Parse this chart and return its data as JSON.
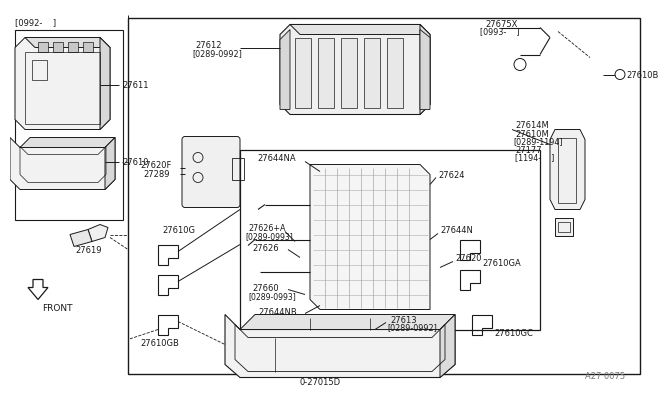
{
  "bg_color": "#ffffff",
  "line_color": "#1a1a1a",
  "text_color": "#1a1a1a",
  "gray_color": "#777777",
  "fig_width": 6.4,
  "fig_height": 3.72,
  "labels": {
    "top_left_bracket": "[0992-    ]",
    "ref_27611": "27611",
    "ref_27610": "27610",
    "ref_27619": "27619",
    "front_arrow": "FRONT",
    "ref_27612": "27612",
    "ref_27612b": "[0289-0992]",
    "ref_27675X": "27675X",
    "ref_27675Xb": "[0993-    ]",
    "ref_27610B": "27610B",
    "ref_27614M": "27614M",
    "ref_27610M": "27610M",
    "ref_27610Mb": "[0289-1194]",
    "ref_27177": "27177",
    "ref_27177b": "[1194-    ]",
    "ref_27620F": "27620F",
    "ref_27289": "27289",
    "ref_27644NA": "27644NA",
    "ref_27624": "27624",
    "ref_27620": "27620",
    "ref_27610G": "27610G",
    "ref_276264A": "27626+A",
    "ref_276264Ab": "[0289-0993]",
    "ref_27626": "27626",
    "ref_27644N": "27644N",
    "ref_27610GA": "27610GA",
    "ref_27660": "27660",
    "ref_27660b": "[0289-0993]",
    "ref_27644NB": "27644NB",
    "ref_27610GC": "27610GC",
    "ref_27610GB": "27610GB",
    "ref_27613": "27613",
    "ref_27613b": "[0289-0992]",
    "ref_270150": "0-27015D",
    "ref_page": "A27 0075"
  }
}
